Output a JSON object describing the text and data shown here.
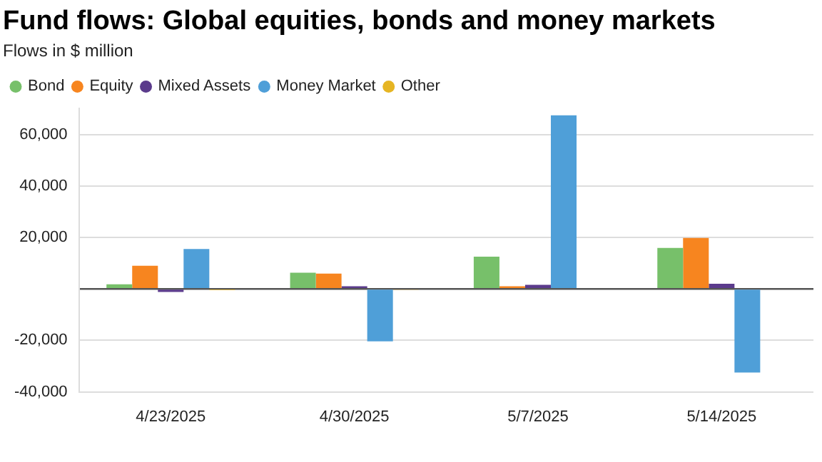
{
  "chart_data": {
    "type": "bar",
    "title": "Fund flows: Global equities, bonds and money markets",
    "subtitle": "Flows in $ million",
    "categories": [
      "4/23/2025",
      "4/30/2025",
      "5/7/2025",
      "5/14/2025"
    ],
    "series": [
      {
        "name": "Bond",
        "color": "#77c06a",
        "values": [
          1800,
          6300,
          12500,
          15900
        ]
      },
      {
        "name": "Equity",
        "color": "#f7851f",
        "values": [
          9000,
          5900,
          1000,
          19800
        ]
      },
      {
        "name": "Mixed Assets",
        "color": "#5b3b8c",
        "values": [
          -1200,
          1000,
          1600,
          2000
        ]
      },
      {
        "name": "Money Market",
        "color": "#4f9fd8",
        "values": [
          15500,
          -20400,
          67400,
          -32500
        ]
      },
      {
        "name": "Other",
        "color": "#e6b523",
        "values": [
          -500,
          -400,
          0,
          0
        ]
      }
    ],
    "ylim": [
      -40000,
      70000
    ],
    "yticks": [
      {
        "value": -40000,
        "label": "-40,000"
      },
      {
        "value": -20000,
        "label": "-20,000"
      },
      {
        "value": 0,
        "label": null
      },
      {
        "value": 20000,
        "label": "20,000"
      },
      {
        "value": 40000,
        "label": "40,000"
      },
      {
        "value": 60000,
        "label": "60,000"
      }
    ],
    "grid": "y",
    "legend": "top left"
  }
}
